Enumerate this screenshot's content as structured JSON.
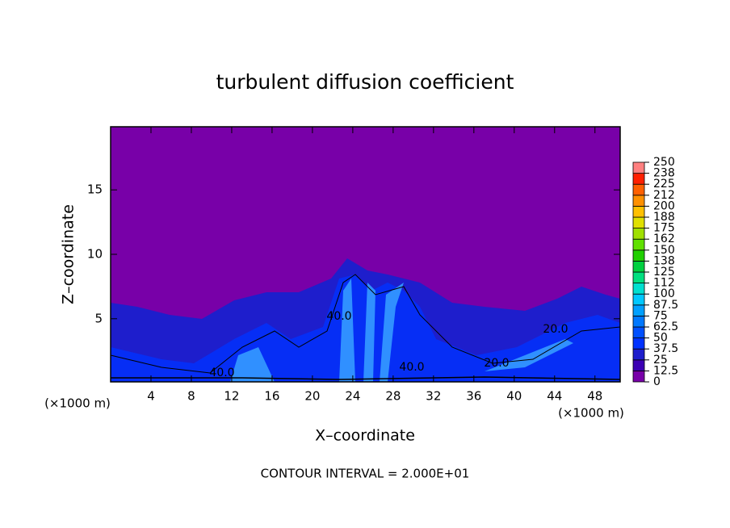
{
  "chart_data": {
    "type": "contour",
    "title": "turbulent diffusion coefficient",
    "xlabel": "X–coordinate",
    "ylabel": "Z–coordinate",
    "x_unit": "(×1000 m)",
    "y_unit": "(×1000 m)",
    "note": "CONTOUR INTERVAL = 2.000E+01",
    "xlim": [
      0,
      50.5
    ],
    "xticks": [
      4,
      8,
      12,
      16,
      20,
      24,
      28,
      32,
      36,
      40,
      44,
      48
    ],
    "ylim": [
      0.1,
      19.9
    ],
    "yticks": [
      5,
      10,
      15
    ],
    "contour_labels": [
      "40.0",
      "40.0",
      "40.0",
      "20.0",
      "20.0"
    ],
    "colorbar": {
      "ticks": [
        0,
        12.5,
        25,
        37.5,
        50,
        62.5,
        75,
        87.5,
        100,
        112,
        125,
        138,
        150,
        162,
        175,
        188,
        200,
        212,
        225,
        238,
        250
      ],
      "colors": [
        "#7800a8",
        "#3c00b4",
        "#1e1ecc",
        "#0032ff",
        "#0050ff",
        "#0078ff",
        "#00a0ff",
        "#00c8ff",
        "#00e0d0",
        "#00e080",
        "#00d040",
        "#20d000",
        "#60e000",
        "#a0e000",
        "#e0e000",
        "#ffc000",
        "#ff9000",
        "#ff6000",
        "#ff2000",
        "#ff8080"
      ]
    }
  }
}
